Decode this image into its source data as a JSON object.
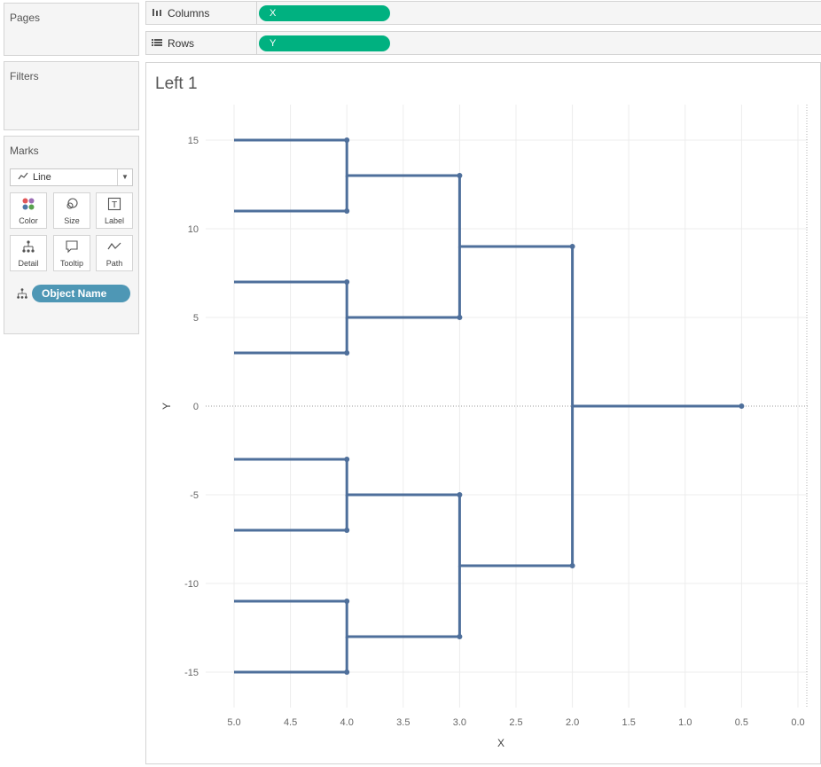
{
  "left_panel": {
    "pages": {
      "title": "Pages"
    },
    "filters": {
      "title": "Filters"
    },
    "marks": {
      "title": "Marks",
      "mark_type": "Line",
      "buttons": [
        {
          "label": "Color",
          "icon": "color-icon"
        },
        {
          "label": "Size",
          "icon": "size-icon"
        },
        {
          "label": "Label",
          "icon": "label-icon"
        },
        {
          "label": "Detail",
          "icon": "detail-icon"
        },
        {
          "label": "Tooltip",
          "icon": "tooltip-icon"
        },
        {
          "label": "Path",
          "icon": "path-icon"
        }
      ],
      "field_pill": "Object Name"
    }
  },
  "shelves": {
    "columns": {
      "label": "Columns",
      "pill": "X"
    },
    "rows": {
      "label": "Rows",
      "pill": "Y"
    }
  },
  "sheet": {
    "title": "Left 1"
  },
  "colors": {
    "pill_green": "#00b180",
    "pill_blue": "#4e97b5",
    "line": "#4e6f9b"
  },
  "chart_data": {
    "type": "line",
    "title": "Left 1",
    "xlabel": "X",
    "ylabel": "Y",
    "x_reversed": true,
    "xlim": [
      0,
      5.25
    ],
    "ylim": [
      -17,
      17
    ],
    "x_ticks": [
      "5.0",
      "4.5",
      "4.0",
      "3.5",
      "3.0",
      "2.5",
      "2.0",
      "1.5",
      "1.0",
      "0.5",
      "0.0"
    ],
    "y_ticks": [
      "15",
      "10",
      "5",
      "0",
      "-5",
      "-10",
      "-15"
    ],
    "grid": true,
    "series": [
      {
        "values": [
          [
            5,
            15
          ],
          [
            4,
            15
          ],
          [
            4,
            13
          ],
          [
            3,
            13
          ],
          [
            3,
            9
          ],
          [
            2,
            9
          ],
          [
            2,
            0
          ],
          [
            0.5,
            0
          ]
        ]
      },
      {
        "values": [
          [
            5,
            11
          ],
          [
            4,
            11
          ],
          [
            4,
            13
          ]
        ]
      },
      {
        "values": [
          [
            5,
            7
          ],
          [
            4,
            7
          ],
          [
            4,
            5
          ],
          [
            3,
            5
          ],
          [
            3,
            9
          ]
        ]
      },
      {
        "values": [
          [
            5,
            3
          ],
          [
            4,
            3
          ],
          [
            4,
            5
          ]
        ]
      },
      {
        "values": [
          [
            5,
            -3
          ],
          [
            4,
            -3
          ],
          [
            4,
            -5
          ],
          [
            3,
            -5
          ],
          [
            3,
            -9
          ],
          [
            2,
            -9
          ],
          [
            2,
            0
          ]
        ]
      },
      {
        "values": [
          [
            5,
            -7
          ],
          [
            4,
            -7
          ],
          [
            4,
            -5
          ]
        ]
      },
      {
        "values": [
          [
            5,
            -11
          ],
          [
            4,
            -11
          ],
          [
            4,
            -13
          ],
          [
            3,
            -13
          ],
          [
            3,
            -9
          ]
        ]
      },
      {
        "values": [
          [
            5,
            -15
          ],
          [
            4,
            -15
          ],
          [
            4,
            -13
          ]
        ]
      }
    ],
    "points": [
      [
        4,
        15
      ],
      [
        4,
        11
      ],
      [
        3,
        13
      ],
      [
        4,
        7
      ],
      [
        4,
        3
      ],
      [
        3,
        5
      ],
      [
        2,
        9
      ],
      [
        0.5,
        0
      ],
      [
        4,
        -3
      ],
      [
        4,
        -7
      ],
      [
        3,
        -5
      ],
      [
        4,
        -11
      ],
      [
        4,
        -15
      ],
      [
        3,
        -13
      ],
      [
        2,
        -9
      ]
    ]
  }
}
